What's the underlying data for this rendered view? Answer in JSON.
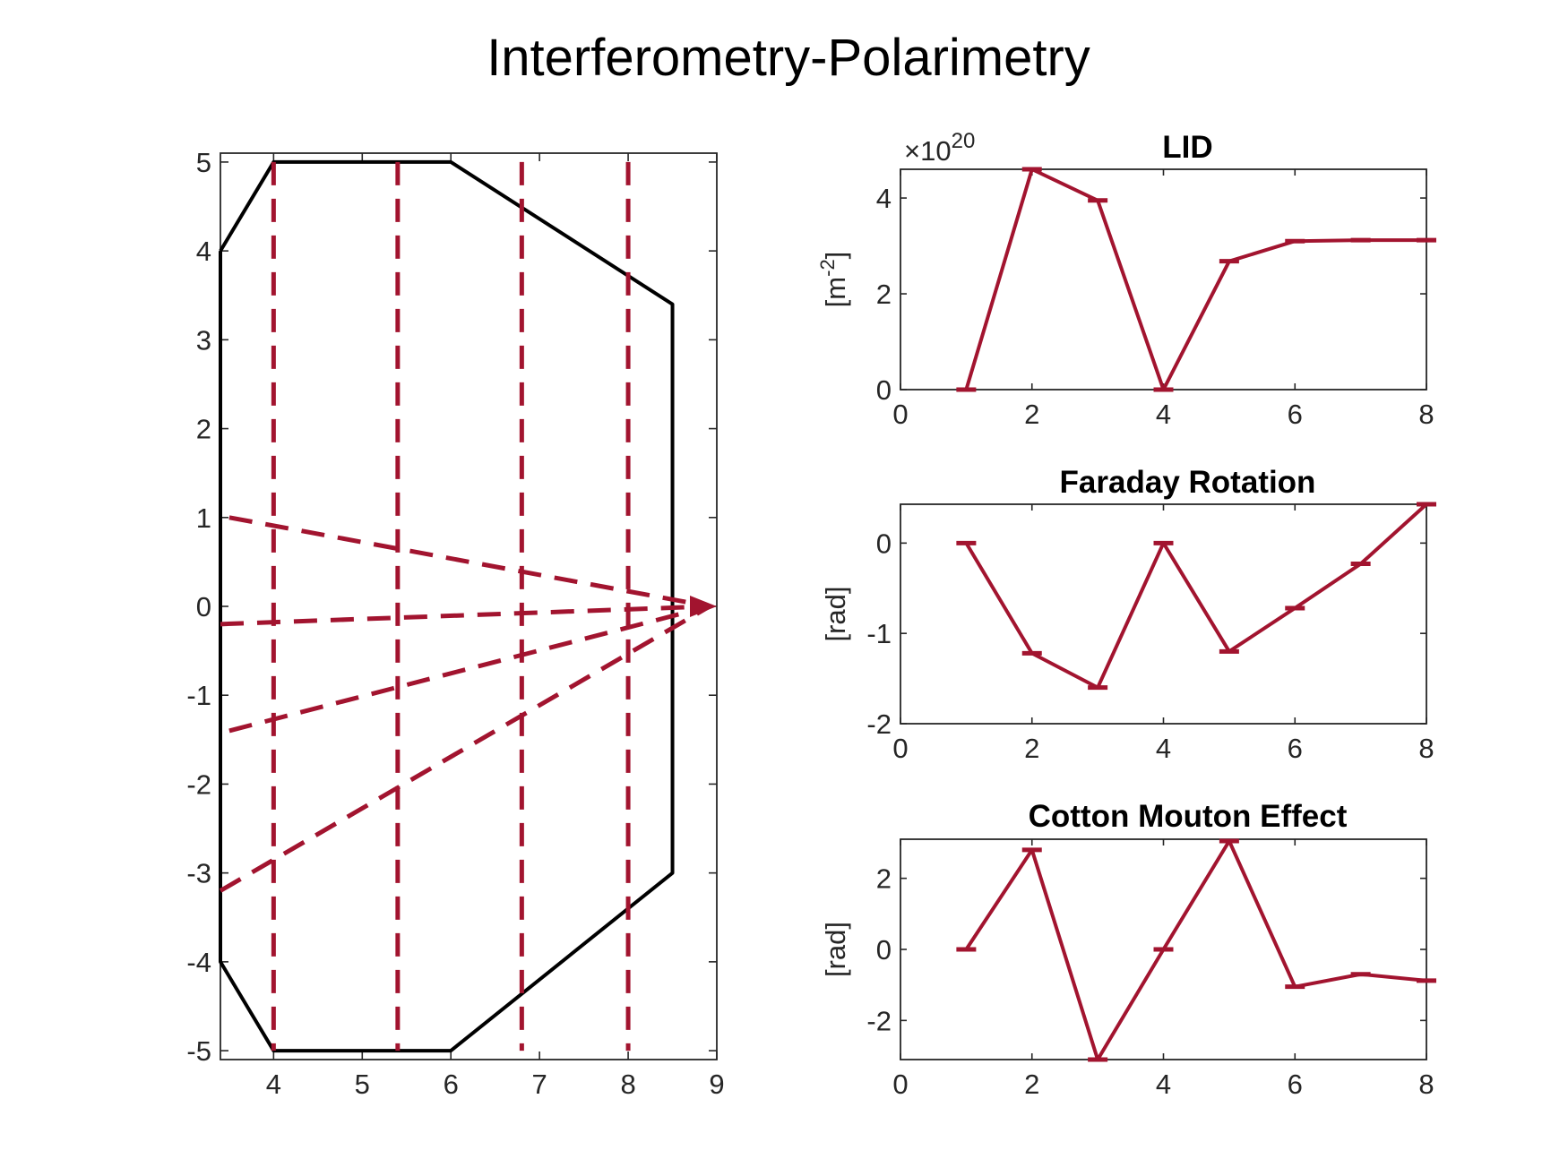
{
  "figure": {
    "title": "Interferometry-Polarimetry",
    "color": "#a2142f"
  },
  "chart_data": [
    {
      "type": "line",
      "panel": "geometry",
      "xlim": [
        3.4,
        9
      ],
      "ylim": [
        -5.1,
        5.1
      ],
      "x_ticks": [
        "4",
        "5",
        "6",
        "7",
        "8",
        "9"
      ],
      "y_ticks": [
        "-5",
        "-4",
        "-3",
        "-2",
        "-1",
        "0",
        "1",
        "2",
        "3",
        "4",
        "5"
      ],
      "vessel_outline": {
        "color": "#000000",
        "x": [
          3.4,
          4,
          6,
          8.5,
          8.5,
          6,
          4,
          3.4,
          3.4
        ],
        "y": [
          4,
          5,
          5,
          3.4,
          -3,
          -5,
          -5,
          -4,
          4
        ]
      },
      "vertical_chords_x": [
        4,
        5.4,
        6.8,
        8
      ],
      "chord_y_range": [
        -5,
        5
      ],
      "fan_chords": {
        "apex": [
          9,
          0
        ],
        "start_points": [
          [
            3.5,
            1
          ],
          [
            3.4,
            -0.2
          ],
          [
            3.5,
            -1.4
          ],
          [
            3.4,
            -3.2
          ]
        ]
      }
    },
    {
      "type": "line",
      "panel": "LID",
      "title": "LID",
      "ylabel": "[m-2]",
      "exponent_label": "×10",
      "exponent_power": "20",
      "xlim": [
        0,
        8
      ],
      "ylim": [
        0,
        4.6
      ],
      "x_ticks": [
        "0",
        "2",
        "4",
        "6",
        "8"
      ],
      "y_ticks": [
        "0",
        "2",
        "4"
      ],
      "x": [
        1,
        2,
        3,
        4,
        5,
        6,
        7,
        8
      ],
      "values": [
        0,
        4.6,
        3.95,
        0,
        2.68,
        3.1,
        3.12,
        3.12
      ]
    },
    {
      "type": "line",
      "panel": "faraday",
      "title": "Faraday Rotation",
      "ylabel": "[rad]",
      "xlim": [
        0,
        8
      ],
      "ylim": [
        -2,
        0.43
      ],
      "x_ticks": [
        "0",
        "2",
        "4",
        "6",
        "8"
      ],
      "y_ticks": [
        "-2",
        "-1",
        "0"
      ],
      "x": [
        1,
        2,
        3,
        4,
        5,
        6,
        7,
        8
      ],
      "values": [
        0,
        -1.22,
        -1.6,
        0,
        -1.2,
        -0.72,
        -0.23,
        0.43
      ]
    },
    {
      "type": "line",
      "panel": "cotton",
      "title": "Cotton Mouton Effect",
      "ylabel": "[rad]",
      "xlim": [
        0,
        8
      ],
      "ylim": [
        -3.1,
        3.1
      ],
      "x_ticks": [
        "0",
        "2",
        "4",
        "6",
        "8"
      ],
      "y_ticks": [
        "-2",
        "0",
        "2"
      ],
      "x": [
        1,
        2,
        3,
        4,
        5,
        6,
        7,
        8
      ],
      "values": [
        0,
        2.8,
        -3.1,
        0,
        3.05,
        -1.05,
        -0.7,
        -0.88
      ]
    }
  ]
}
